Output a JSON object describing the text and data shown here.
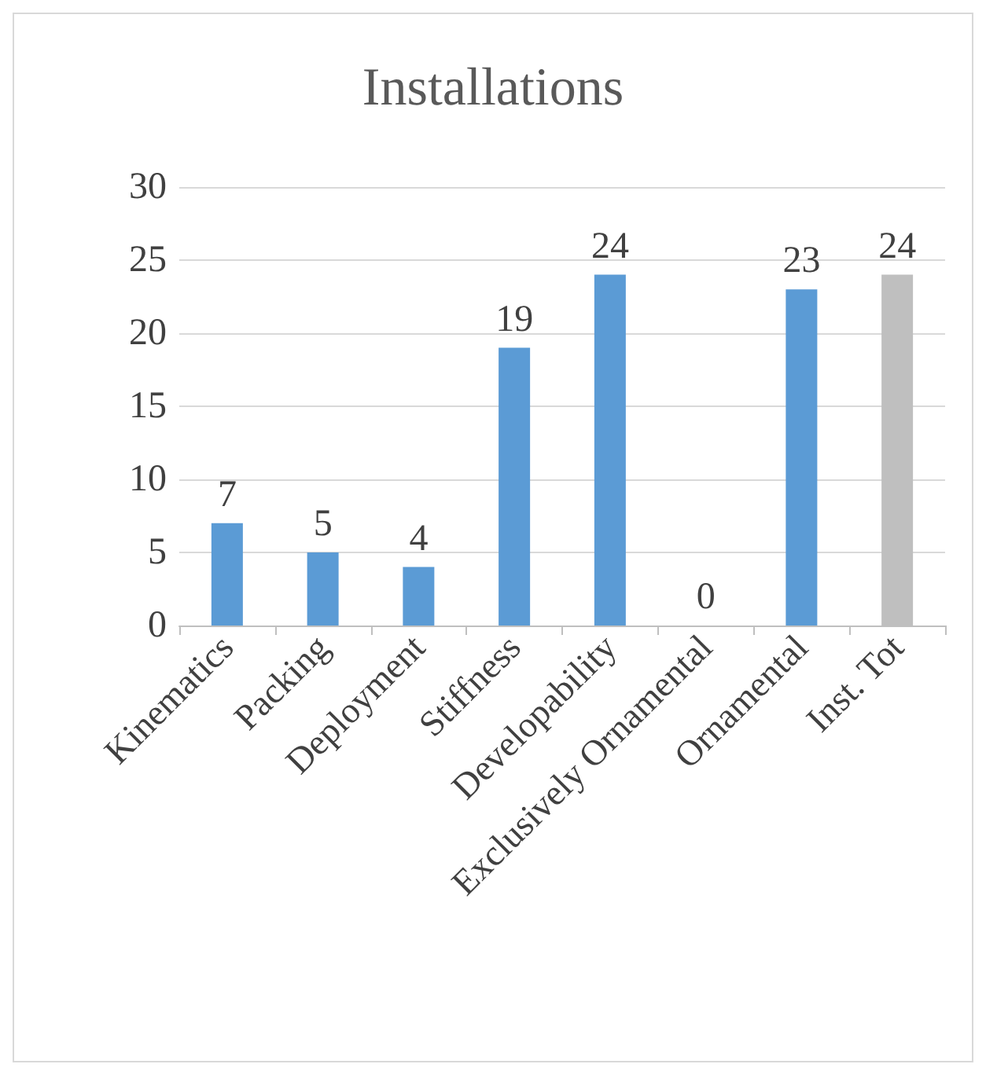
{
  "chart_data": {
    "type": "bar",
    "title": "Installations",
    "categories": [
      "Kinematics",
      "Packing",
      "Deployment",
      "Stiffness",
      "Developability",
      "Exclusively Ornamental",
      "Ornamental",
      "Inst. Tot"
    ],
    "values": [
      7,
      5,
      4,
      19,
      24,
      0,
      23,
      24
    ],
    "colors": [
      "#5b9bd5",
      "#5b9bd5",
      "#5b9bd5",
      "#5b9bd5",
      "#5b9bd5",
      "#5b9bd5",
      "#5b9bd5",
      "#bfbfbf"
    ],
    "ylim": [
      0,
      30
    ],
    "yticks": [
      0,
      5,
      10,
      15,
      20,
      25,
      30
    ],
    "grid": "y",
    "data_labels": true
  }
}
